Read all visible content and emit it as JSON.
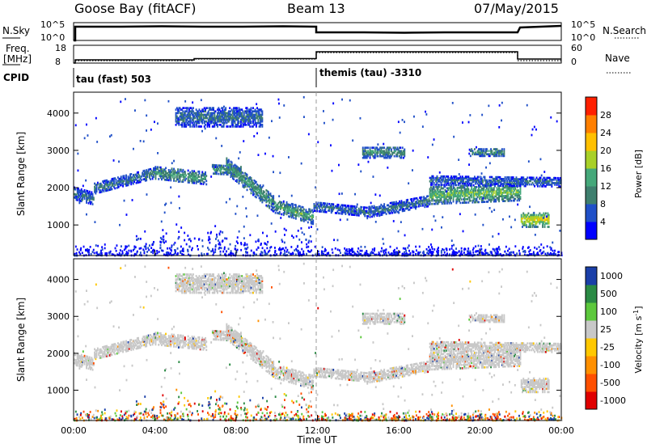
{
  "header": {
    "title": "Goose Bay (fitACF)",
    "beam": "Beam 13",
    "date": "07/May/2015"
  },
  "status_panels": {
    "nsky_label": "N.Sky",
    "nsky_ticks": [
      "10^5",
      "10^0"
    ],
    "nsearch_label": "N.Search",
    "nsearch_ticks": [
      "10^5",
      "10^0"
    ],
    "freq_label": "Freq.",
    "freq_unit": "[MHz]",
    "freq_ticks": [
      "18",
      "8"
    ],
    "nave_label": "Nave",
    "nave_ticks": [
      "60",
      "0"
    ],
    "cpid_label": "CPID",
    "cpid_1": "tau (fast) 503",
    "cpid_2": "themis (tau) -3310"
  },
  "axes": {
    "ylabel": "Slant Range [km]",
    "y_ticks": [
      "4000",
      "3000",
      "2000",
      "1000"
    ],
    "x_ticks": [
      "00:00",
      "04:00",
      "08:00",
      "12:00",
      "16:00",
      "20:00",
      "00:00"
    ],
    "xlabel": "Time UT"
  },
  "colorbars": {
    "power_label": "Power [dB]",
    "power_ticks": [
      "28",
      "24",
      "20",
      "16",
      "12",
      "8",
      "4"
    ],
    "velocity_label": "Velocity [m s",
    "velocity_label_sup": "-1",
    "velocity_label_end": "]",
    "velocity_ticks": [
      "1000",
      "500",
      "100",
      "25",
      "-25",
      "-100",
      "-500",
      "-1000"
    ]
  },
  "chart_data": [
    {
      "type": "heatmap",
      "name": "power",
      "x_range_hours": [
        0,
        24
      ],
      "y_range_km": [
        180,
        4560
      ],
      "colorbar_range_db": [
        0,
        32
      ],
      "colors": [
        "#0000ff",
        "#2050c8",
        "#3f7f6e",
        "#45a87a",
        "#a8d028",
        "#ffc000",
        "#ff7f00",
        "#ff2000"
      ],
      "echo_bands": [
        {
          "t0": 0.0,
          "t1": 1.0,
          "r0": 1850,
          "r1": 1700,
          "w": 160,
          "p": 9
        },
        {
          "t0": 1.0,
          "t1": 4.0,
          "r0": 1980,
          "r1": 2400,
          "w": 140,
          "p": 10
        },
        {
          "t0": 4.0,
          "t1": 6.5,
          "r0": 2400,
          "r1": 2250,
          "w": 160,
          "p": 13
        },
        {
          "t0": 6.8,
          "t1": 8.2,
          "r0": 2500,
          "r1": 2450,
          "w": 120,
          "p": 14
        },
        {
          "t0": 7.5,
          "t1": 10.0,
          "r0": 2600,
          "r1": 1500,
          "w": 220,
          "p": 13
        },
        {
          "t0": 10.0,
          "t1": 11.8,
          "r0": 1500,
          "r1": 1200,
          "w": 180,
          "p": 14
        },
        {
          "t0": 11.8,
          "t1": 14.5,
          "r0": 1500,
          "r1": 1350,
          "w": 120,
          "p": 9
        },
        {
          "t0": 14.5,
          "t1": 17.5,
          "r0": 1350,
          "r1": 1650,
          "w": 140,
          "p": 9
        },
        {
          "t0": 17.5,
          "t1": 22.0,
          "r0": 1800,
          "r1": 1900,
          "w": 240,
          "p": 16
        },
        {
          "t0": 17.5,
          "t1": 24.0,
          "r0": 2200,
          "r1": 2150,
          "w": 120,
          "p": 8
        },
        {
          "t0": 22.0,
          "t1": 23.4,
          "r0": 1150,
          "r1": 1150,
          "w": 200,
          "p": 21
        },
        {
          "t0": 14.2,
          "t1": 16.3,
          "r0": 2950,
          "r1": 2950,
          "w": 150,
          "p": 12
        },
        {
          "t0": 19.5,
          "t1": 21.2,
          "r0": 2950,
          "r1": 2950,
          "w": 100,
          "p": 12
        },
        {
          "t0": 5.0,
          "t1": 9.3,
          "r0": 3900,
          "r1": 3900,
          "w": 260,
          "p": 9
        }
      ]
    },
    {
      "type": "heatmap",
      "name": "velocity",
      "x_range_hours": [
        0,
        24
      ],
      "y_range_km": [
        180,
        4560
      ],
      "colorbar_levels": [
        -1000,
        -500,
        -100,
        -25,
        25,
        100,
        500,
        1000
      ],
      "colors": [
        "#e00000",
        "#ff5000",
        "#ff9000",
        "#ffc800",
        "#c8c8c8",
        "#5cc83c",
        "#2a8a44",
        "#1a3fa8"
      ],
      "ground_scatter_color": "#c8c8c8"
    }
  ]
}
